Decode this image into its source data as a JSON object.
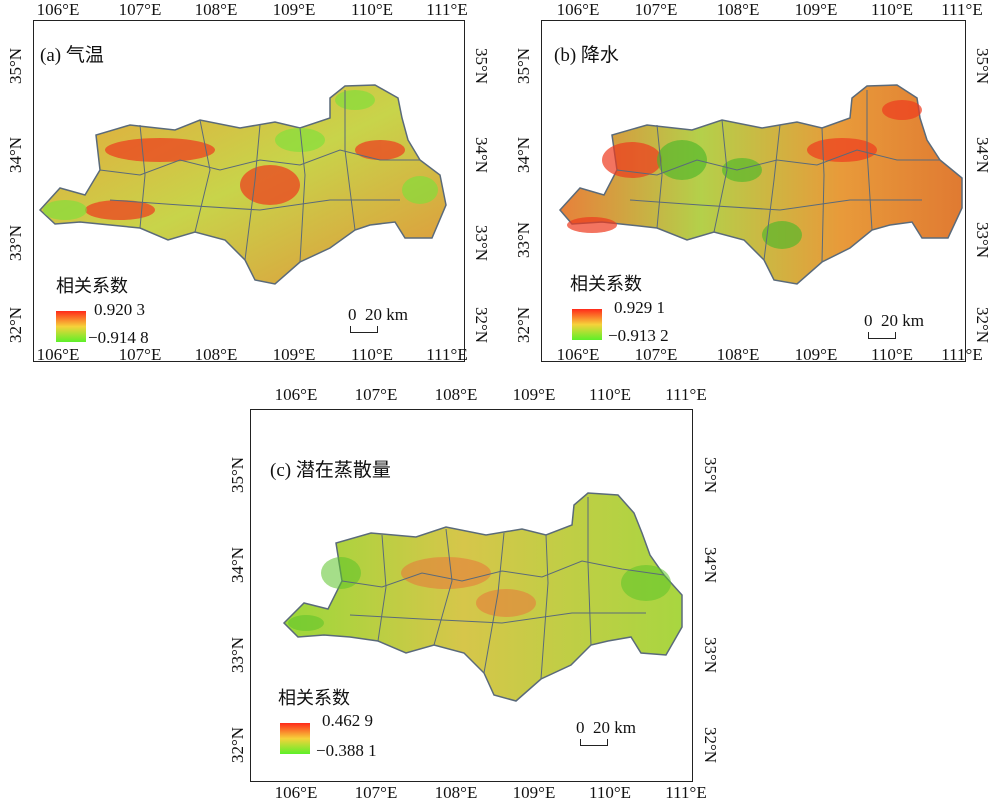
{
  "legend_title": "相关系数",
  "scale_text": "0  20 km",
  "lon_ticks": [
    "106°E",
    "107°E",
    "108°E",
    "109°E",
    "110°E",
    "111°E"
  ],
  "lat_ticks": [
    "32°N",
    "33°N",
    "34°N",
    "35°N"
  ],
  "colors": {
    "high": "#ff2a1a",
    "mid": "#f6d23a",
    "low": "#5cf02a",
    "boundary": "#5a6a7a"
  },
  "panels": [
    {
      "id": "a",
      "title": "(a) 气温",
      "legend_max": "0.920 3",
      "legend_min": "−0.914 8",
      "tint": "warm"
    },
    {
      "id": "b",
      "title": "(b) 降水",
      "legend_max": "0.929 1",
      "legend_min": "−0.913 2",
      "tint": "warm"
    },
    {
      "id": "c",
      "title": "(c) 潜在蒸散量",
      "legend_max": "0.462 9",
      "legend_min": "−0.388 1",
      "tint": "cool"
    }
  ]
}
